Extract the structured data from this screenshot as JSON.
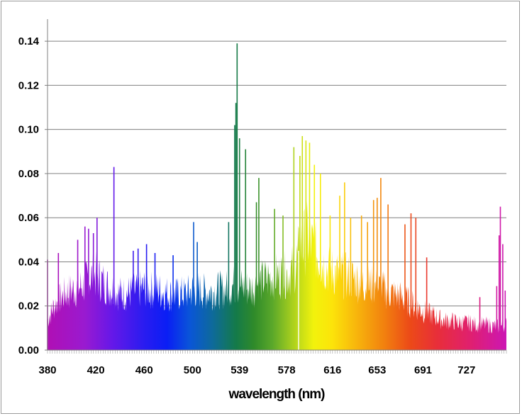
{
  "chart_data": {
    "type": "area",
    "title": "",
    "xlabel": "wavelength (nm)",
    "ylabel": "",
    "xlim": [
      380,
      760
    ],
    "ylim": [
      0,
      0.15
    ],
    "grid": true,
    "x_ticks": [
      380,
      420,
      460,
      500,
      539,
      578,
      616,
      653,
      691,
      727
    ],
    "y_ticks": [
      0.0,
      0.02,
      0.04,
      0.06,
      0.08,
      0.1,
      0.12,
      0.14
    ],
    "y_tick_labels": [
      "0.00",
      "0.02",
      "0.04",
      "0.06",
      "0.08",
      "0.10",
      "0.12",
      "0.14"
    ],
    "fill": "visible-spectrum gradient (violet → blue → green → yellow → orange → red → magenta)",
    "envelope": [
      [
        380,
        0.016
      ],
      [
        385,
        0.024
      ],
      [
        390,
        0.028
      ],
      [
        395,
        0.031
      ],
      [
        400,
        0.033
      ],
      [
        405,
        0.034
      ],
      [
        410,
        0.036
      ],
      [
        415,
        0.04
      ],
      [
        420,
        0.041
      ],
      [
        425,
        0.038
      ],
      [
        430,
        0.035
      ],
      [
        435,
        0.033
      ],
      [
        440,
        0.031
      ],
      [
        445,
        0.031
      ],
      [
        450,
        0.032
      ],
      [
        455,
        0.033
      ],
      [
        460,
        0.034
      ],
      [
        465,
        0.033
      ],
      [
        470,
        0.033
      ],
      [
        475,
        0.032
      ],
      [
        480,
        0.031
      ],
      [
        485,
        0.03
      ],
      [
        490,
        0.031
      ],
      [
        495,
        0.031
      ],
      [
        500,
        0.033
      ],
      [
        505,
        0.033
      ],
      [
        510,
        0.032
      ],
      [
        515,
        0.032
      ],
      [
        520,
        0.033
      ],
      [
        525,
        0.033
      ],
      [
        530,
        0.034
      ],
      [
        535,
        0.036
      ],
      [
        540,
        0.035
      ],
      [
        545,
        0.034
      ],
      [
        550,
        0.034
      ],
      [
        555,
        0.037
      ],
      [
        560,
        0.039
      ],
      [
        565,
        0.04
      ],
      [
        570,
        0.041
      ],
      [
        575,
        0.041
      ],
      [
        580,
        0.042
      ],
      [
        585,
        0.046
      ],
      [
        590,
        0.057
      ],
      [
        595,
        0.062
      ],
      [
        600,
        0.056
      ],
      [
        605,
        0.05
      ],
      [
        610,
        0.046
      ],
      [
        615,
        0.043
      ],
      [
        620,
        0.042
      ],
      [
        625,
        0.041
      ],
      [
        630,
        0.04
      ],
      [
        635,
        0.039
      ],
      [
        640,
        0.037
      ],
      [
        645,
        0.036
      ],
      [
        650,
        0.035
      ],
      [
        655,
        0.034
      ],
      [
        660,
        0.033
      ],
      [
        665,
        0.031
      ],
      [
        670,
        0.03
      ],
      [
        675,
        0.028
      ],
      [
        680,
        0.026
      ],
      [
        685,
        0.024
      ],
      [
        690,
        0.022
      ],
      [
        695,
        0.02
      ],
      [
        700,
        0.019
      ],
      [
        705,
        0.017
      ],
      [
        710,
        0.016
      ],
      [
        715,
        0.016
      ],
      [
        720,
        0.015
      ],
      [
        725,
        0.015
      ],
      [
        730,
        0.015
      ],
      [
        735,
        0.014
      ],
      [
        740,
        0.014
      ],
      [
        745,
        0.014
      ],
      [
        750,
        0.013
      ],
      [
        755,
        0.013
      ],
      [
        760,
        0.014
      ]
    ],
    "peaks": [
      [
        380,
        0.041
      ],
      [
        389,
        0.044
      ],
      [
        405,
        0.05
      ],
      [
        411,
        0.056
      ],
      [
        414,
        0.055
      ],
      [
        418,
        0.053
      ],
      [
        421,
        0.06
      ],
      [
        435,
        0.083
      ],
      [
        451,
        0.045
      ],
      [
        455,
        0.046
      ],
      [
        462,
        0.048
      ],
      [
        469,
        0.044
      ],
      [
        484,
        0.043
      ],
      [
        501,
        0.058
      ],
      [
        504,
        0.049
      ],
      [
        530,
        0.058
      ],
      [
        535,
        0.102
      ],
      [
        536,
        0.112
      ],
      [
        537,
        0.139
      ],
      [
        539,
        0.096
      ],
      [
        544,
        0.091
      ],
      [
        553,
        0.067
      ],
      [
        555,
        0.078
      ],
      [
        568,
        0.064
      ],
      [
        575,
        0.061
      ],
      [
        584,
        0.092
      ],
      [
        589,
        0.088
      ],
      [
        591,
        0.097
      ],
      [
        594,
        0.095
      ],
      [
        597,
        0.094
      ],
      [
        601,
        0.084
      ],
      [
        606,
        0.08
      ],
      [
        614,
        0.061
      ],
      [
        622,
        0.07
      ],
      [
        626,
        0.076
      ],
      [
        631,
        0.06
      ],
      [
        640,
        0.061
      ],
      [
        645,
        0.058
      ],
      [
        650,
        0.068
      ],
      [
        653,
        0.069
      ],
      [
        656,
        0.078
      ],
      [
        662,
        0.066
      ],
      [
        676,
        0.057
      ],
      [
        681,
        0.062
      ],
      [
        685,
        0.06
      ],
      [
        694,
        0.042
      ],
      [
        738,
        0.024
      ],
      [
        752,
        0.029
      ],
      [
        754,
        0.052
      ],
      [
        755,
        0.065
      ],
      [
        757,
        0.048
      ],
      [
        759,
        0.027
      ]
    ]
  }
}
